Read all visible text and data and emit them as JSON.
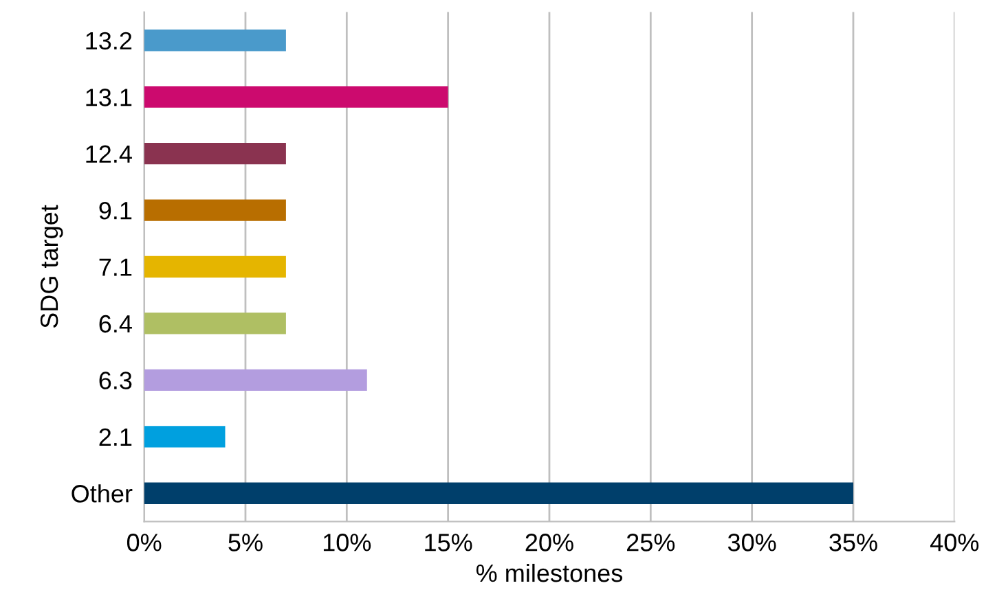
{
  "chart_data": {
    "type": "bar",
    "orientation": "horizontal",
    "xlabel": "% milestones",
    "ylabel": "SDG target",
    "categories": [
      "13.2",
      "13.1",
      "12.4",
      "9.1",
      "7.1",
      "6.4",
      "6.3",
      "2.1",
      "Other"
    ],
    "values": [
      7,
      15,
      7,
      7,
      7,
      7,
      11,
      4,
      35
    ],
    "colors": [
      "#4a9acb",
      "#cc0a6e",
      "#8a3350",
      "#b86e00",
      "#e5b500",
      "#afbf63",
      "#b39ddf",
      "#00a0df",
      "#003f6b"
    ],
    "xlim": [
      0,
      40
    ],
    "xticks": [
      {
        "value": 0,
        "label": "0%"
      },
      {
        "value": 5,
        "label": "5%"
      },
      {
        "value": 10,
        "label": "10%"
      },
      {
        "value": 15,
        "label": "15%"
      },
      {
        "value": 20,
        "label": "20%"
      },
      {
        "value": 25,
        "label": "25%"
      },
      {
        "value": 30,
        "label": "30%"
      },
      {
        "value": 35,
        "label": "35%"
      },
      {
        "value": 40,
        "label": "40%"
      }
    ],
    "grid": "x",
    "legend": false
  }
}
